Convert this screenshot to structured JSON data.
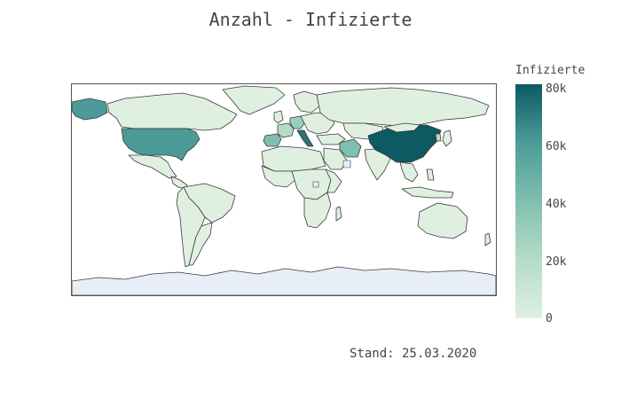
{
  "title": "Anzahl - Infizierte",
  "colorbar": {
    "title": "Infizierte",
    "ticks": [
      "80k",
      "60k",
      "40k",
      "20k",
      "0"
    ],
    "range": [
      0,
      82000
    ],
    "colors": [
      "#dff0e0",
      "#b4dcc8",
      "#7fbfaf",
      "#4d9b98",
      "#0d5a63"
    ]
  },
  "footnote": "Stand: 25.03.2020",
  "map_data": {
    "projection": "equirectangular",
    "metric": "Infizierte",
    "no_data_color": "#e8eef8",
    "countries": [
      {
        "name": "China",
        "value": 81000
      },
      {
        "name": "Italy",
        "value": 69000
      },
      {
        "name": "United States",
        "value": 54000
      },
      {
        "name": "Spain",
        "value": 42000
      },
      {
        "name": "Germany",
        "value": 32000
      },
      {
        "name": "Iran",
        "value": 24000
      },
      {
        "name": "France",
        "value": 22000
      }
    ]
  }
}
